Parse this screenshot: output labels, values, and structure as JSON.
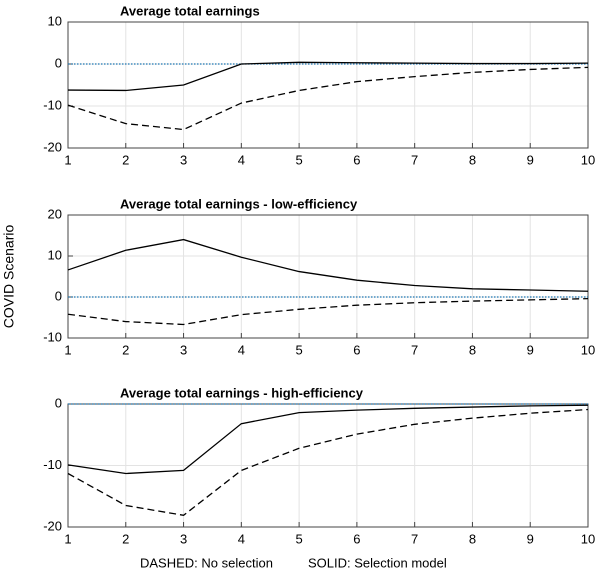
{
  "chart_data": [
    {
      "type": "line",
      "title": "Average total earnings",
      "x": [
        1,
        2,
        3,
        4,
        5,
        6,
        7,
        8,
        9,
        10
      ],
      "xlim": [
        1,
        10
      ],
      "xticks": [
        1,
        2,
        3,
        4,
        5,
        6,
        7,
        8,
        9,
        10
      ],
      "ylim": [
        -20,
        10
      ],
      "yticks": [
        10,
        0,
        -10,
        -20
      ],
      "grid": true,
      "zero_line": {
        "value": 0,
        "color": "#1f77b4"
      },
      "series": [
        {
          "color": "#000000",
          "dash": false,
          "values": [
            -6.2,
            -6.3,
            -5,
            0,
            0.4,
            0.3,
            0.2,
            0.1,
            0.1,
            0.2
          ]
        },
        {
          "color": "#000000",
          "dash": true,
          "values": [
            -9.8,
            -14.2,
            -15.6,
            -9.3,
            -6.3,
            -4.2,
            -3,
            -2,
            -1.3,
            -0.8
          ]
        }
      ]
    },
    {
      "type": "line",
      "title": "Average total earnings - low-efficiency",
      "ylabel": "COVID Scenario",
      "x": [
        1,
        2,
        3,
        4,
        5,
        6,
        7,
        8,
        9,
        10
      ],
      "xlim": [
        1,
        10
      ],
      "xticks": [
        1,
        2,
        3,
        4,
        5,
        6,
        7,
        8,
        9,
        10
      ],
      "ylim": [
        -10,
        20
      ],
      "yticks": [
        20,
        10,
        0,
        -10
      ],
      "grid": true,
      "zero_line": {
        "value": 0,
        "color": "#1f77b4"
      },
      "series": [
        {
          "color": "#000000",
          "dash": false,
          "values": [
            6.6,
            11.4,
            14,
            9.7,
            6.2,
            4.1,
            2.8,
            2,
            1.7,
            1.4
          ]
        },
        {
          "color": "#000000",
          "dash": true,
          "values": [
            -4.2,
            -6,
            -6.7,
            -4.3,
            -3,
            -2,
            -1.4,
            -1,
            -0.7,
            -0.4
          ]
        }
      ]
    },
    {
      "type": "line",
      "title": "Average total earnings -  high-efficiency",
      "x": [
        1,
        2,
        3,
        4,
        5,
        6,
        7,
        8,
        9,
        10
      ],
      "xlim": [
        1,
        10
      ],
      "xticks": [
        1,
        2,
        3,
        4,
        5,
        6,
        7,
        8,
        9,
        10
      ],
      "ylim": [
        -20,
        0
      ],
      "yticks": [
        0,
        -10,
        -20
      ],
      "grid": true,
      "zero_line": {
        "value": 0,
        "color": "#1f77b4"
      },
      "series": [
        {
          "color": "#000000",
          "dash": false,
          "values": [
            -9.9,
            -11.3,
            -10.8,
            -3.2,
            -1.4,
            -1,
            -0.7,
            -0.5,
            -0.3,
            -0.2
          ]
        },
        {
          "color": "#000000",
          "dash": true,
          "values": [
            -11.3,
            -16.5,
            -18.1,
            -10.8,
            -7.2,
            -4.9,
            -3.3,
            -2.3,
            -1.5,
            -0.9
          ]
        }
      ]
    }
  ],
  "caption": [
    "DASHED: No selection",
    "SOLID: Selection model"
  ]
}
